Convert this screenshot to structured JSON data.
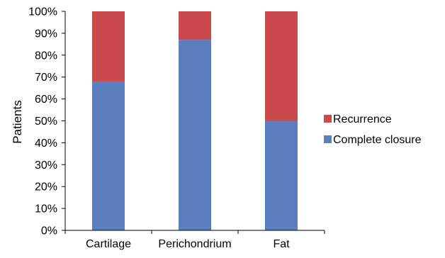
{
  "chart_data": {
    "type": "bar",
    "stacked": true,
    "categories": [
      "Cartilage",
      "Perichondrium",
      "Fat"
    ],
    "series": [
      {
        "name": "Complete closure",
        "values": [
          68,
          87,
          50
        ],
        "color": "#5b7ebf"
      },
      {
        "name": "Recurrence",
        "values": [
          32,
          13,
          50
        ],
        "color": "#c9494d"
      }
    ],
    "ylabel": "Patients",
    "xlabel": "",
    "ylim": [
      0,
      100
    ],
    "yticks": [
      "0%",
      "10%",
      "20%",
      "30%",
      "40%",
      "50%",
      "60%",
      "70%",
      "80%",
      "90%",
      "100%"
    ],
    "legend_position": "right",
    "legend_order": [
      "Recurrence",
      "Complete closure"
    ],
    "grid": false
  }
}
